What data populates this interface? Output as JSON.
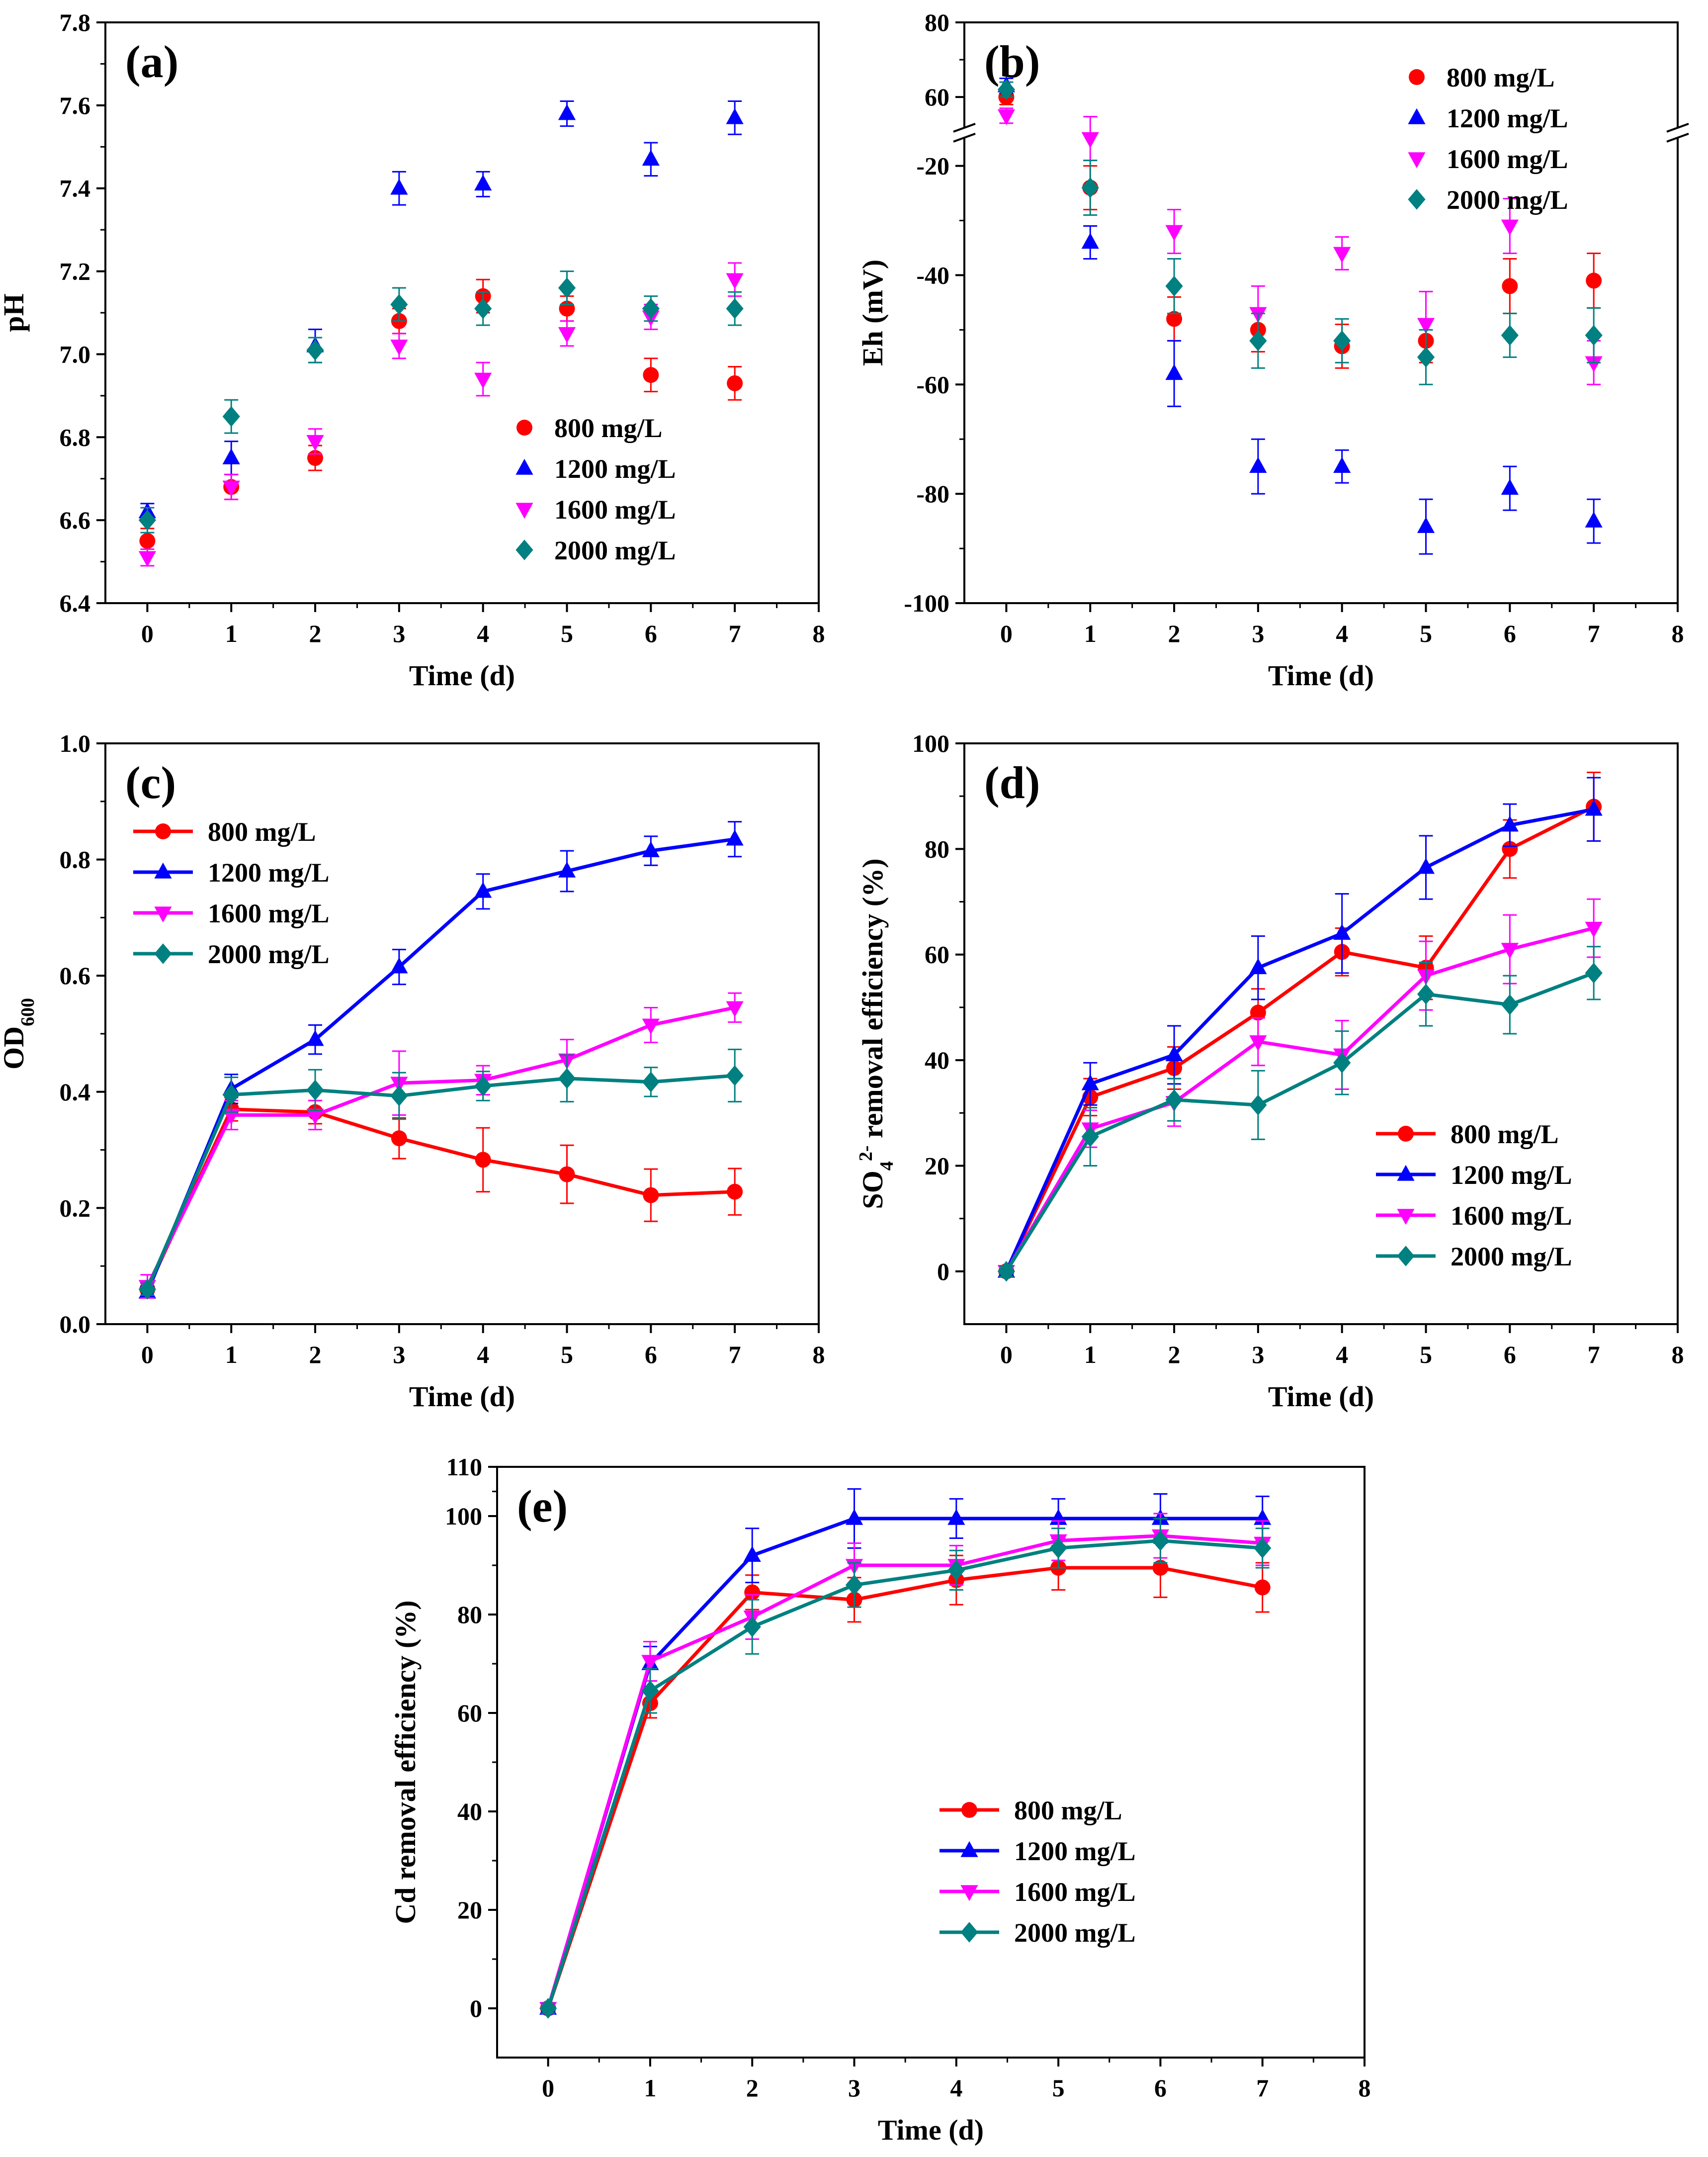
{
  "chart_data": [
    {
      "panel": "(a)",
      "type": "scatter",
      "xlabel": "Time (d)",
      "ylabel": "pH",
      "xlim": [
        -0.5,
        8
      ],
      "ylim": [
        6.4,
        7.8
      ],
      "xticks": [
        0,
        1,
        2,
        3,
        4,
        5,
        6,
        7,
        8
      ],
      "yticks": [
        6.4,
        6.6,
        6.8,
        7.0,
        7.2,
        7.4,
        7.6,
        7.8
      ],
      "ytick_decimals": 1,
      "lines": false,
      "legend_position": "bottom-right",
      "x": [
        0,
        1,
        2,
        3,
        4,
        5,
        6,
        7
      ],
      "series": [
        {
          "name": "800 mg/L",
          "color": "#ff0000",
          "marker": "circle",
          "values": [
            6.55,
            6.68,
            6.75,
            7.08,
            7.14,
            7.11,
            6.95,
            6.93
          ],
          "errors": [
            0.03,
            0.03,
            0.03,
            0.03,
            0.04,
            0.03,
            0.04,
            0.04
          ]
        },
        {
          "name": "1200 mg/L",
          "color": "#0000ff",
          "marker": "triangle-up",
          "values": [
            6.62,
            6.75,
            7.02,
            7.4,
            7.41,
            7.58,
            7.47,
            7.57
          ],
          "errors": [
            0.02,
            0.04,
            0.04,
            0.04,
            0.03,
            0.03,
            0.04,
            0.04
          ]
        },
        {
          "name": "1600 mg/L",
          "color": "#ff00ff",
          "marker": "triangle-down",
          "values": [
            6.51,
            6.68,
            6.79,
            7.02,
            6.94,
            7.05,
            7.09,
            7.18
          ],
          "errors": [
            0.02,
            0.03,
            0.03,
            0.03,
            0.04,
            0.03,
            0.03,
            0.04
          ]
        },
        {
          "name": "2000 mg/L",
          "color": "#008080",
          "marker": "diamond",
          "values": [
            6.6,
            6.85,
            7.01,
            7.12,
            7.11,
            7.16,
            7.11,
            7.11
          ],
          "errors": [
            0.03,
            0.04,
            0.03,
            0.04,
            0.04,
            0.04,
            0.03,
            0.04
          ]
        }
      ]
    },
    {
      "panel": "(b)",
      "type": "scatter",
      "xlabel": "Time (d)",
      "ylabel": "Eh (mV)",
      "xlim": [
        -0.5,
        8
      ],
      "ylim": [
        -100,
        80
      ],
      "axis_break": {
        "lower": [
          -100,
          -15
        ],
        "upper": [
          52,
          80
        ]
      },
      "xticks": [
        0,
        1,
        2,
        3,
        4,
        5,
        6,
        7,
        8
      ],
      "yticks": [
        -100,
        -80,
        -60,
        -40,
        -20,
        60,
        80
      ],
      "ytick_decimals": 0,
      "lines": false,
      "legend_position": "top-right",
      "x": [
        0,
        1,
        2,
        3,
        4,
        5,
        6,
        7
      ],
      "series": [
        {
          "name": "800 mg/L",
          "color": "#ff0000",
          "marker": "circle",
          "values": [
            60,
            -24,
            -48,
            -50,
            -53,
            -52,
            -42,
            -41
          ],
          "errors": [
            2,
            4,
            4,
            4,
            4,
            4,
            5,
            5
          ]
        },
        {
          "name": "1200 mg/L",
          "color": "#0000ff",
          "marker": "triangle-up",
          "values": [
            63,
            -34,
            -58,
            -75,
            -75,
            -86,
            -79,
            -85
          ],
          "errors": [
            2,
            3,
            6,
            5,
            3,
            5,
            4,
            4
          ]
        },
        {
          "name": "1600 mg/L",
          "color": "#ff00ff",
          "marker": "triangle-down",
          "values": [
            55,
            -15,
            -32,
            -47,
            -36,
            -49,
            -31,
            -56
          ],
          "errors": [
            2,
            4,
            4,
            5,
            3,
            6,
            5,
            4
          ]
        },
        {
          "name": "2000 mg/L",
          "color": "#008080",
          "marker": "diamond",
          "values": [
            62,
            -24,
            -42,
            -52,
            -52,
            -55,
            -51,
            -51
          ],
          "errors": [
            2,
            5,
            5,
            5,
            4,
            5,
            4,
            5
          ]
        }
      ]
    },
    {
      "panel": "(c)",
      "type": "line",
      "xlabel": "Time (d)",
      "ylabel": "OD",
      "ylabel_sub": "600",
      "xlim": [
        -0.5,
        8
      ],
      "ylim": [
        0,
        1.0
      ],
      "xticks": [
        0,
        1,
        2,
        3,
        4,
        5,
        6,
        7,
        8
      ],
      "yticks": [
        0,
        0.2,
        0.4,
        0.6,
        0.8,
        1.0
      ],
      "ytick_decimals": 1,
      "lines": true,
      "legend_position": "top-left",
      "x": [
        0,
        1,
        2,
        3,
        4,
        5,
        6,
        7
      ],
      "series": [
        {
          "name": "800 mg/L",
          "color": "#ff0000",
          "marker": "circle",
          "values": [
            0.06,
            0.37,
            0.365,
            0.32,
            0.283,
            0.258,
            0.222,
            0.228
          ],
          "errors": [
            0.01,
            0.02,
            0.02,
            0.035,
            0.055,
            0.05,
            0.045,
            0.04
          ]
        },
        {
          "name": "1200 mg/L",
          "color": "#0000ff",
          "marker": "triangle-up",
          "values": [
            0.055,
            0.405,
            0.49,
            0.615,
            0.745,
            0.78,
            0.815,
            0.835
          ],
          "errors": [
            0.01,
            0.025,
            0.025,
            0.03,
            0.03,
            0.035,
            0.025,
            0.03
          ]
        },
        {
          "name": "1600 mg/L",
          "color": "#ff00ff",
          "marker": "triangle-down",
          "values": [
            0.065,
            0.36,
            0.36,
            0.415,
            0.42,
            0.455,
            0.515,
            0.545
          ],
          "errors": [
            0.02,
            0.025,
            0.025,
            0.055,
            0.025,
            0.035,
            0.03,
            0.025
          ]
        },
        {
          "name": "2000 mg/L",
          "color": "#008080",
          "marker": "diamond",
          "values": [
            0.06,
            0.395,
            0.403,
            0.393,
            0.41,
            0.423,
            0.417,
            0.428
          ],
          "errors": [
            0.01,
            0.03,
            0.035,
            0.04,
            0.025,
            0.04,
            0.025,
            0.045
          ]
        }
      ]
    },
    {
      "panel": "(d)",
      "type": "line",
      "xlabel": "Time (d)",
      "ylabel": "SO",
      "ylabel_sub": "4",
      "ylabel_sup": "2-",
      "ylabel_rest": " removal efficiency (%)",
      "xlim": [
        -0.5,
        8
      ],
      "ylim": [
        -10,
        100
      ],
      "xticks": [
        0,
        1,
        2,
        3,
        4,
        5,
        6,
        7,
        8
      ],
      "yticks": [
        0,
        20,
        40,
        60,
        80,
        100
      ],
      "ytick_decimals": 0,
      "lines": true,
      "legend_position": "bottom-right",
      "x": [
        0,
        1,
        2,
        3,
        4,
        5,
        6,
        7
      ],
      "series": [
        {
          "name": "800 mg/L",
          "color": "#ff0000",
          "marker": "circle",
          "values": [
            0,
            33,
            38.5,
            49,
            60.5,
            57.5,
            80,
            88
          ],
          "errors": [
            1,
            3.5,
            4,
            4.5,
            4.5,
            6,
            5.5,
            6.5
          ]
        },
        {
          "name": "1200 mg/L",
          "color": "#0000ff",
          "marker": "triangle-up",
          "values": [
            0,
            35.5,
            41,
            57.5,
            64,
            76.5,
            84.5,
            87.5
          ],
          "errors": [
            1,
            4,
            5.5,
            6,
            7.5,
            6,
            4,
            6
          ]
        },
        {
          "name": "1600 mg/L",
          "color": "#ff00ff",
          "marker": "triangle-down",
          "values": [
            0,
            27,
            32,
            43.5,
            41,
            56,
            61,
            65
          ],
          "errors": [
            1,
            3.5,
            4.5,
            4.5,
            6.5,
            6.5,
            6.5,
            5.5
          ]
        },
        {
          "name": "2000 mg/L",
          "color": "#008080",
          "marker": "diamond",
          "values": [
            0,
            25.5,
            32.5,
            31.5,
            39.5,
            52.5,
            50.5,
            56.5
          ],
          "errors": [
            1,
            5.5,
            4,
            6.5,
            6,
            6,
            5.5,
            5
          ]
        }
      ]
    },
    {
      "panel": "(e)",
      "type": "line",
      "xlabel": "Time (d)",
      "ylabel": "Cd removal efficiency (%)",
      "xlim": [
        -0.5,
        8
      ],
      "ylim": [
        -10,
        110
      ],
      "xticks": [
        0,
        1,
        2,
        3,
        4,
        5,
        6,
        7,
        8
      ],
      "yticks": [
        0,
        20,
        40,
        60,
        80,
        100,
        110
      ],
      "ytick_decimals": 0,
      "lines": true,
      "legend_position": "bottom-right",
      "x": [
        0,
        1,
        2,
        3,
        4,
        5,
        6,
        7
      ],
      "series": [
        {
          "name": "800 mg/L",
          "color": "#ff0000",
          "marker": "circle",
          "values": [
            0,
            62,
            84.5,
            83,
            87,
            89.5,
            89.5,
            85.5
          ],
          "errors": [
            1,
            3,
            3.5,
            4.5,
            5,
            4.5,
            6,
            5
          ]
        },
        {
          "name": "1200 mg/L",
          "color": "#0000ff",
          "marker": "triangle-up",
          "values": [
            0,
            70,
            92,
            99.5,
            99.5,
            99.5,
            99.5,
            99.5
          ],
          "errors": [
            1,
            3.5,
            5.5,
            6,
            4,
            4,
            5,
            4.5
          ]
        },
        {
          "name": "1600 mg/L",
          "color": "#ff00ff",
          "marker": "triangle-down",
          "values": [
            0,
            70.5,
            79.5,
            90,
            90,
            95,
            96,
            94.5
          ],
          "errors": [
            1,
            4,
            4.5,
            4.5,
            4,
            4,
            4.5,
            4.5
          ]
        },
        {
          "name": "2000 mg/L",
          "color": "#008080",
          "marker": "diamond",
          "values": [
            0,
            64.5,
            77.5,
            86,
            89,
            93.5,
            95,
            93.5
          ],
          "errors": [
            1,
            4.5,
            5.5,
            4.5,
            4,
            4,
            4.5,
            4
          ]
        }
      ]
    }
  ]
}
